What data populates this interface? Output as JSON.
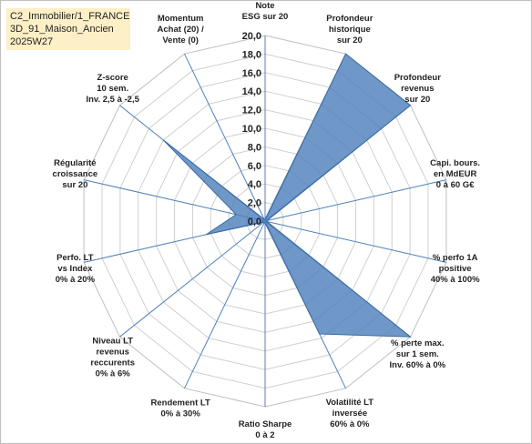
{
  "title_lines": [
    "C2_Immobilier/1_FRANCE",
    "3D_91_Maison_Ancien",
    "2025W27"
  ],
  "chart_data": {
    "type": "radar",
    "rlim": [
      0,
      20
    ],
    "tick_step": 2,
    "tick_labels": [
      "0,0",
      "2,0",
      "4,0",
      "6,0",
      "8,0",
      "10,0",
      "12,0",
      "14,0",
      "16,0",
      "18,0",
      "20,0"
    ],
    "grid": true,
    "series_color": "#4f81bd",
    "axes": [
      {
        "label": [
          "Note",
          "ESG sur 20"
        ],
        "value": 0.2
      },
      {
        "label": [
          "Profondeur",
          "historique",
          "sur 20"
        ],
        "value": 20
      },
      {
        "label": [
          "Profondeur",
          "revenus",
          "sur 20"
        ],
        "value": 20
      },
      {
        "label": [
          "Capi. bours.",
          "en MdEUR",
          "0 à 60 G€"
        ],
        "value": 0.2
      },
      {
        "label": [
          "% perfo 1A",
          "positive",
          "40% à 100%"
        ],
        "value": 0.2
      },
      {
        "label": [
          "% perte max.",
          "sur 1 sem.",
          "Inv. 60% à 0%"
        ],
        "value": 20
      },
      {
        "label": [
          "Volatilité LT",
          "inversée",
          "60% à 0%"
        ],
        "value": 13.5
      },
      {
        "label": [
          "Ratio Sharpe",
          "0 à 2"
        ],
        "value": 0.2
      },
      {
        "label": [
          "Rendement LT",
          "0% à 30%"
        ],
        "value": 0.2
      },
      {
        "label": [
          "Niveau LT",
          "revenus",
          "reccurents",
          "0% à 6%"
        ],
        "value": 0.2
      },
      {
        "label": [
          "Perfo. LT",
          "vs Index",
          "0% à 20%"
        ],
        "value": 6.5
      },
      {
        "label": [
          "Régularité",
          "croissance",
          "sur 20"
        ],
        "value": 3.2
      },
      {
        "label": [
          "Z-score",
          "10 sem.",
          "Inv. 2,5 à -2,5"
        ],
        "value": 14
      },
      {
        "label": [
          "Momentum",
          "Achat (20) /",
          "Vente (0)"
        ],
        "value": 0.2
      }
    ]
  }
}
